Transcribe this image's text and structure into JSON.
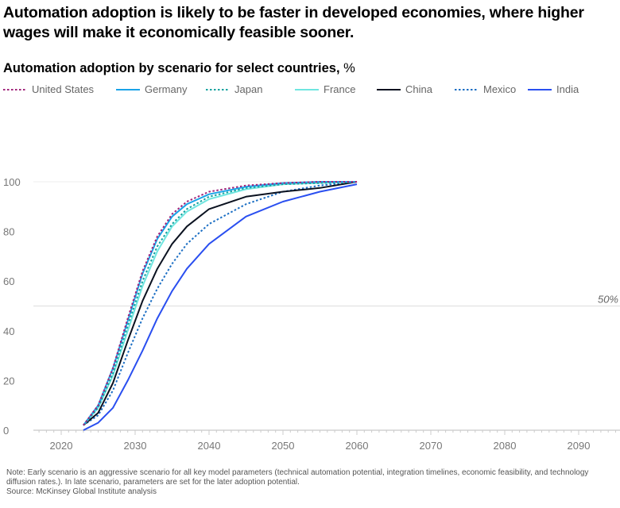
{
  "title": "Automation adoption is likely to be faster in developed economies, where higher wages will make it economically feasible sooner.",
  "subtitle": "Automation adoption by scenario for select countries,",
  "subtitle_unit": "%",
  "notes": {
    "note": "Note: Early scenario is an aggressive scenario for all key model parameters (technical automation potential, integration timelines, economic feasibility, and technology diffusion rates.). In late scenario, parameters are set for the later adoption potential.",
    "source": "Source: McKinsey Global Institute analysis"
  },
  "chart_data": {
    "type": "line",
    "title": "Automation adoption by scenario for select countries, %",
    "xlabel": "",
    "ylabel": "%",
    "xlim": [
      2016,
      2096
    ],
    "ylim": [
      0,
      100
    ],
    "xticks": [
      2020,
      2030,
      2040,
      2050,
      2060,
      2070,
      2080,
      2090
    ],
    "yticks": [
      0,
      20,
      40,
      60,
      80,
      100
    ],
    "reference_line": {
      "value": 50,
      "label": "50%"
    },
    "legend_position": "top-left",
    "x": [
      2023,
      2025,
      2027,
      2029,
      2031,
      2033,
      2035,
      2037,
      2040,
      2045,
      2050,
      2055,
      2060
    ],
    "series": [
      {
        "name": "United States",
        "color": "#a0237a",
        "dash": "dotted",
        "values": [
          2,
          10,
          25,
          45,
          64,
          78,
          87,
          92,
          96,
          98.5,
          99.5,
          100,
          100
        ]
      },
      {
        "name": "Germany",
        "color": "#1aa3e8",
        "dash": "solid",
        "values": [
          2,
          10,
          25,
          44,
          63,
          77,
          86,
          91,
          95,
          98,
          99.5,
          100,
          100
        ]
      },
      {
        "name": "Japan",
        "color": "#14a3a0",
        "dash": "dotted",
        "values": [
          2,
          9,
          23,
          42,
          60,
          74,
          83,
          89,
          94,
          97.5,
          99,
          99.5,
          100
        ]
      },
      {
        "name": "France",
        "color": "#6fe6e0",
        "dash": "solid",
        "values": [
          2,
          9,
          22,
          40,
          58,
          72,
          82,
          88,
          93,
          97,
          99,
          99.5,
          100
        ]
      },
      {
        "name": "China",
        "color": "#0b1220",
        "dash": "solid",
        "values": [
          2,
          7,
          19,
          36,
          52,
          65,
          75,
          82,
          89,
          94,
          96,
          97.5,
          100
        ]
      },
      {
        "name": "Mexico",
        "color": "#1c6fc4",
        "dash": "dotted",
        "values": [
          2,
          6,
          16,
          31,
          45,
          57,
          67,
          75,
          83,
          91,
          96,
          98.5,
          100
        ]
      },
      {
        "name": "India",
        "color": "#2a4ff0",
        "dash": "solid",
        "values": [
          0,
          3,
          9,
          20,
          32,
          45,
          56,
          65,
          75,
          86,
          92,
          96,
          99
        ]
      }
    ]
  }
}
